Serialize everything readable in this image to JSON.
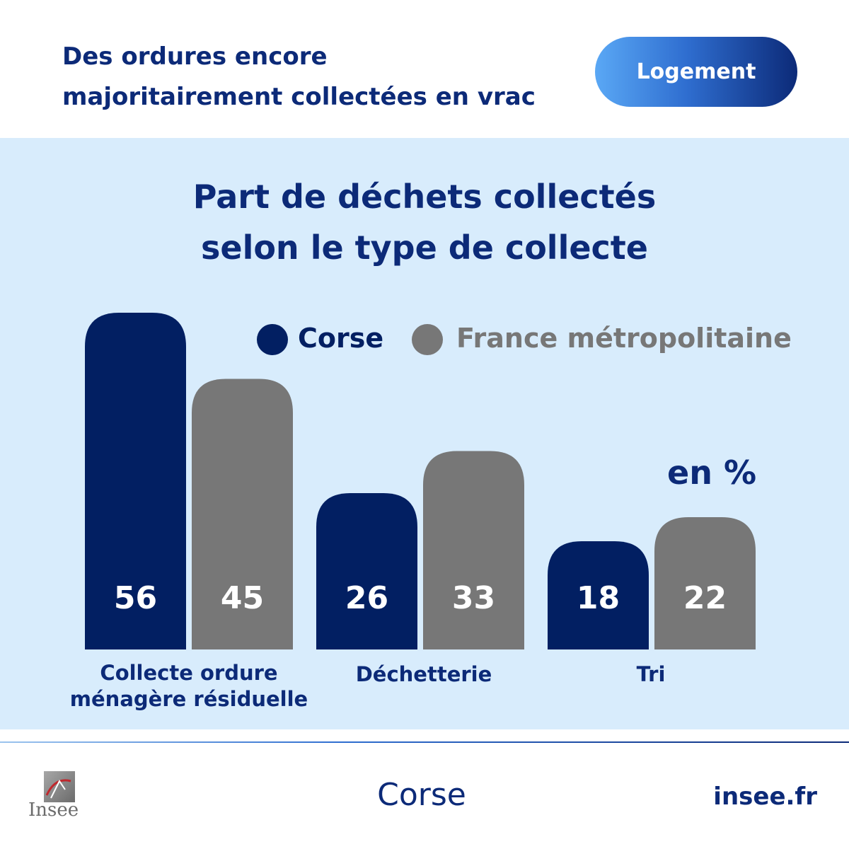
{
  "header": {
    "title_line1": "Des ordures encore",
    "title_line2": "majoritairement collectées en vrac",
    "badge": "Logement"
  },
  "chart_data": {
    "type": "bar",
    "title_line1": "Part de déchets collectés",
    "title_line2": "selon le type de collecte",
    "unit": "en %",
    "categories": [
      [
        "Collecte ordure",
        "ménagère résiduelle"
      ],
      [
        "Déchetterie"
      ],
      [
        "Tri"
      ]
    ],
    "series": [
      {
        "name": "Corse",
        "values": [
          56,
          26,
          18
        ],
        "color": "#021f62"
      },
      {
        "name": "France métropolitaine",
        "values": [
          45,
          33,
          22
        ],
        "color": "#777777"
      }
    ],
    "ylim": [
      0,
      56
    ],
    "legend": "top-right",
    "grid": false
  },
  "footer": {
    "logo_text": "Insee",
    "region": "Corse",
    "site": "insee.fr"
  },
  "colors": {
    "brand": "#0c2a78",
    "panel": "#d8ecfc"
  }
}
